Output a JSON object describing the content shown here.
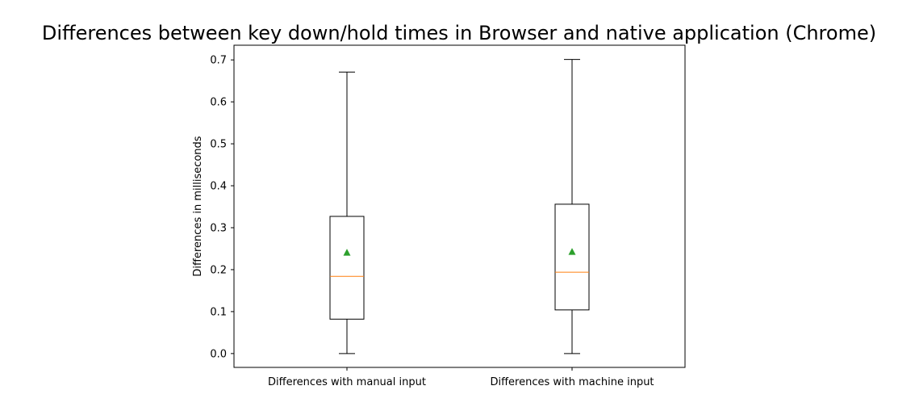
{
  "chart_data": {
    "type": "box",
    "title": "Differences between key down/hold times in Browser and native application (Chrome)",
    "xlabel": "",
    "ylabel": "Differences in milliseconds",
    "ylim": [
      -0.033,
      0.735
    ],
    "yticks": [
      "0.0",
      "0.1",
      "0.2",
      "0.3",
      "0.4",
      "0.5",
      "0.6",
      "0.7"
    ],
    "grid": false,
    "categories": [
      "Differences with manual input",
      "Differences with machine input"
    ],
    "boxes": [
      {
        "whisker_low": 0.0,
        "q1": 0.082,
        "median": 0.184,
        "q3": 0.327,
        "whisker_high": 0.671,
        "mean": 0.241
      },
      {
        "whisker_low": 0.0,
        "q1": 0.104,
        "median": 0.194,
        "q3": 0.356,
        "whisker_high": 0.701,
        "mean": 0.243
      }
    ],
    "colors": {
      "box": "#000000",
      "median": "#ff7f0e",
      "mean_marker": "#2ca02c"
    }
  }
}
